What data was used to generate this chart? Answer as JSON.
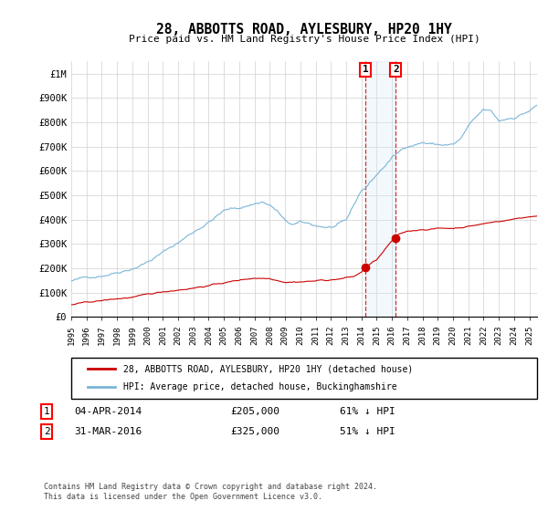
{
  "title": "28, ABBOTTS ROAD, AYLESBURY, HP20 1HY",
  "subtitle": "Price paid vs. HM Land Registry's House Price Index (HPI)",
  "ylabel_ticks": [
    "£0",
    "£100K",
    "£200K",
    "£300K",
    "£400K",
    "£500K",
    "£600K",
    "£700K",
    "£800K",
    "£900K",
    "£1M"
  ],
  "ytick_values": [
    0,
    100000,
    200000,
    300000,
    400000,
    500000,
    600000,
    700000,
    800000,
    900000,
    1000000
  ],
  "ylim": [
    0,
    1050000
  ],
  "xlim_start": 1995.0,
  "xlim_end": 2025.5,
  "hpi_color": "#7ab5d8",
  "sale_color": "#cc0000",
  "vline_color": "#cc0000",
  "vshade_color": "#d4e8f5",
  "legend_sale_label": "28, ABBOTTS ROAD, AYLESBURY, HP20 1HY (detached house)",
  "legend_hpi_label": "HPI: Average price, detached house, Buckinghamshire",
  "transaction1_date": "04-APR-2014",
  "transaction1_price": "£205,000",
  "transaction1_pct": "61% ↓ HPI",
  "transaction1_year": 2014.25,
  "transaction1_value": 205000,
  "transaction2_date": "31-MAR-2016",
  "transaction2_price": "£325,000",
  "transaction2_pct": "51% ↓ HPI",
  "transaction2_year": 2016.25,
  "transaction2_value": 325000,
  "footnote": "Contains HM Land Registry data © Crown copyright and database right 2024.\nThis data is licensed under the Open Government Licence v3.0."
}
